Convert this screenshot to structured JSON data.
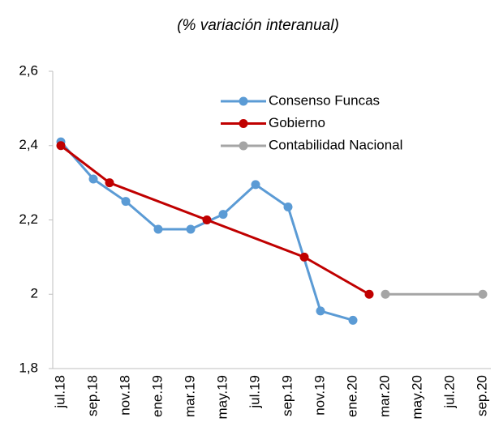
{
  "chart_data": {
    "type": "line",
    "title": "(% variación interanual)",
    "categories": [
      "jul.18",
      null,
      "sep.18",
      null,
      "nov.18",
      null,
      "ene.19",
      null,
      "mar.19",
      null,
      "may.19",
      null,
      "jul.19",
      null,
      "sep.19",
      null,
      "nov.19",
      null,
      "ene.20",
      null,
      "mar.20",
      null,
      "may.20",
      null,
      "jul.20",
      null,
      "sep.20"
    ],
    "series": [
      {
        "name": "Consenso Funcas",
        "color": "#5b9bd5",
        "values": [
          2.41,
          null,
          2.31,
          null,
          2.25,
          null,
          2.175,
          null,
          2.175,
          null,
          2.215,
          null,
          2.295,
          null,
          2.235,
          null,
          1.955,
          null,
          1.93,
          null,
          null,
          null,
          null,
          null,
          null,
          null,
          null
        ]
      },
      {
        "name": "Gobierno",
        "color": "#c00000",
        "values": [
          2.4,
          null,
          null,
          2.3,
          null,
          null,
          null,
          null,
          null,
          2.2,
          null,
          null,
          null,
          null,
          null,
          2.1,
          null,
          null,
          null,
          2.0,
          null,
          null,
          null,
          null,
          null,
          null,
          null
        ]
      },
      {
        "name": "Contabilidad Nacional",
        "color": "#a5a5a5",
        "values": [
          null,
          null,
          null,
          null,
          null,
          null,
          null,
          null,
          null,
          null,
          null,
          null,
          null,
          null,
          null,
          null,
          null,
          null,
          null,
          null,
          2.0,
          null,
          null,
          null,
          null,
          null,
          2.0
        ]
      }
    ],
    "span_gaps": true,
    "ylim": [
      1.8,
      2.6
    ],
    "yticks": [
      {
        "value": 1.8,
        "label": "1,8"
      },
      2,
      {
        "value": 2.2,
        "label": "2,2"
      },
      {
        "value": 2.4,
        "label": "2,4"
      },
      {
        "value": 2.6,
        "label": "2,6"
      }
    ],
    "grid": false,
    "legend": "top-right"
  }
}
